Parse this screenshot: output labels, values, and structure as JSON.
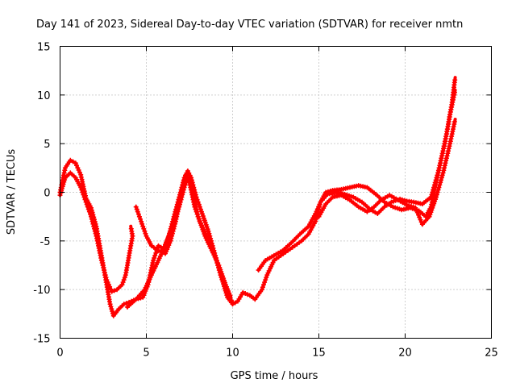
{
  "chart_data": {
    "type": "line",
    "title": "Day 141 of 2023, Sidereal Day-to-day VTEC variation (SDTVAR) for receiver nmtn",
    "xlabel": "GPS time / hours",
    "ylabel": "SDTVAR / TECUs",
    "xlim": [
      0,
      25
    ],
    "ylim": [
      -15,
      15
    ],
    "x_ticks": [
      0,
      5,
      10,
      15,
      20,
      25
    ],
    "y_ticks": [
      -15,
      -10,
      -5,
      0,
      5,
      10,
      15
    ],
    "x_tick_labels": [
      "0",
      "5",
      "10",
      "15",
      "20",
      "25"
    ],
    "y_tick_labels": [
      "-15",
      "-10",
      "-5",
      "0",
      "5",
      "10",
      "15"
    ],
    "grid": true,
    "marker": "plus",
    "series": [
      {
        "name": "track-1",
        "color": "#ff0000",
        "points": [
          [
            0.0,
            0.0
          ],
          [
            0.3,
            2.5
          ],
          [
            0.6,
            3.3
          ],
          [
            0.9,
            3.0
          ],
          [
            1.2,
            1.8
          ],
          [
            1.5,
            -0.6
          ],
          [
            1.8,
            -1.6
          ],
          [
            2.1,
            -3.5
          ],
          [
            2.4,
            -6.5
          ],
          [
            2.7,
            -9.5
          ],
          [
            2.9,
            -11.5
          ],
          [
            3.1,
            -12.7
          ],
          [
            3.4,
            -12.0
          ],
          [
            3.7,
            -11.5
          ],
          [
            4.0,
            -11.3
          ],
          [
            4.4,
            -11.0
          ],
          [
            4.8,
            -10.8
          ],
          [
            5.1,
            -9.5
          ],
          [
            5.4,
            -7.0
          ],
          [
            5.7,
            -5.5
          ],
          [
            6.0,
            -5.8
          ],
          [
            6.3,
            -4.5
          ],
          [
            6.6,
            -2.5
          ],
          [
            6.9,
            -0.5
          ],
          [
            7.2,
            1.5
          ],
          [
            7.4,
            2.2
          ],
          [
            7.6,
            1.5
          ],
          [
            7.9,
            -0.5
          ],
          [
            8.2,
            -2.0
          ],
          [
            8.6,
            -4.0
          ],
          [
            9.0,
            -6.5
          ],
          [
            9.4,
            -9.0
          ],
          [
            9.7,
            -10.8
          ],
          [
            10.0,
            -11.5
          ],
          [
            10.3,
            -11.2
          ],
          [
            10.6,
            -10.3
          ],
          [
            11.0,
            -10.6
          ],
          [
            11.3,
            -11.0
          ],
          [
            11.7,
            -10.0
          ],
          [
            12.0,
            -8.5
          ],
          [
            12.4,
            -7.0
          ],
          [
            12.8,
            -6.5
          ],
          [
            13.2,
            -6.0
          ],
          [
            13.6,
            -5.5
          ],
          [
            14.0,
            -5.0
          ],
          [
            14.4,
            -4.3
          ],
          [
            14.8,
            -3.0
          ],
          [
            15.1,
            -1.0
          ],
          [
            15.4,
            0.0
          ],
          [
            15.8,
            0.2
          ],
          [
            16.3,
            0.3
          ],
          [
            16.8,
            0.5
          ],
          [
            17.3,
            0.7
          ],
          [
            17.8,
            0.5
          ],
          [
            18.3,
            -0.2
          ],
          [
            18.8,
            -1.0
          ],
          [
            19.3,
            -1.5
          ],
          [
            19.8,
            -1.8
          ],
          [
            20.3,
            -1.6
          ],
          [
            20.8,
            -1.9
          ],
          [
            21.2,
            -2.5
          ],
          [
            21.5,
            -1.5
          ],
          [
            21.8,
            1.0
          ],
          [
            22.1,
            3.5
          ],
          [
            22.4,
            6.0
          ],
          [
            22.7,
            9.0
          ],
          [
            22.9,
            11.8
          ]
        ]
      },
      {
        "name": "track-2",
        "color": "#ff0000",
        "points": [
          [
            0.0,
            -0.3
          ],
          [
            0.3,
            1.5
          ],
          [
            0.6,
            2.0
          ],
          [
            0.9,
            1.5
          ],
          [
            1.2,
            0.5
          ],
          [
            1.5,
            -1.0
          ],
          [
            1.8,
            -2.5
          ],
          [
            2.1,
            -4.5
          ],
          [
            2.4,
            -7.0
          ],
          [
            2.7,
            -9.0
          ],
          [
            3.0,
            -10.2
          ],
          [
            3.3,
            -10.0
          ],
          [
            3.6,
            -9.5
          ],
          [
            3.8,
            -8.5
          ],
          [
            4.0,
            -6.5
          ],
          [
            4.2,
            -4.5
          ],
          [
            4.1,
            -3.5
          ]
        ]
      },
      {
        "name": "track-3",
        "color": "#ff0000",
        "points": [
          [
            4.4,
            -1.5
          ],
          [
            4.7,
            -3.0
          ],
          [
            5.0,
            -4.5
          ],
          [
            5.3,
            -5.5
          ],
          [
            5.7,
            -6.0
          ],
          [
            6.1,
            -6.3
          ],
          [
            6.4,
            -5.0
          ],
          [
            6.7,
            -3.0
          ],
          [
            7.0,
            -0.5
          ],
          [
            7.3,
            1.8
          ],
          [
            7.5,
            1.0
          ],
          [
            7.8,
            -1.5
          ],
          [
            8.1,
            -3.0
          ],
          [
            8.5,
            -4.5
          ],
          [
            8.9,
            -6.0
          ],
          [
            9.3,
            -8.5
          ],
          [
            9.7,
            -10.5
          ],
          [
            10.0,
            -11.3
          ]
        ]
      },
      {
        "name": "track-4",
        "color": "#ff0000",
        "points": [
          [
            3.9,
            -11.8
          ],
          [
            4.4,
            -11.0
          ],
          [
            4.9,
            -10.0
          ],
          [
            5.3,
            -8.5
          ],
          [
            5.7,
            -7.0
          ],
          [
            6.1,
            -5.5
          ],
          [
            6.5,
            -3.5
          ],
          [
            6.9,
            -1.5
          ],
          [
            7.2,
            0.5
          ],
          [
            7.4,
            1.5
          ],
          [
            7.7,
            0.0
          ],
          [
            8.0,
            -2.5
          ],
          [
            8.4,
            -4.5
          ],
          [
            8.8,
            -6.0
          ],
          [
            9.2,
            -7.5
          ],
          [
            9.6,
            -9.5
          ],
          [
            9.9,
            -10.8
          ]
        ]
      },
      {
        "name": "track-5",
        "color": "#ff0000",
        "points": [
          [
            11.5,
            -8.0
          ],
          [
            11.9,
            -7.0
          ],
          [
            12.4,
            -6.5
          ],
          [
            12.9,
            -6.0
          ],
          [
            13.4,
            -5.2
          ],
          [
            13.9,
            -4.3
          ],
          [
            14.4,
            -3.5
          ],
          [
            14.8,
            -2.2
          ],
          [
            15.1,
            -1.0
          ],
          [
            15.5,
            -0.2
          ],
          [
            16.0,
            0.0
          ],
          [
            16.5,
            -0.2
          ],
          [
            17.0,
            -0.5
          ],
          [
            17.5,
            -1.0
          ],
          [
            18.0,
            -1.8
          ],
          [
            18.4,
            -2.2
          ],
          [
            18.8,
            -1.5
          ],
          [
            19.2,
            -1.0
          ],
          [
            19.7,
            -0.7
          ],
          [
            20.1,
            -0.9
          ],
          [
            20.5,
            -1.0
          ],
          [
            21.0,
            -1.2
          ],
          [
            21.5,
            -0.5
          ],
          [
            21.9,
            2.0
          ],
          [
            22.3,
            5.0
          ],
          [
            22.6,
            8.0
          ],
          [
            22.9,
            10.5
          ]
        ]
      },
      {
        "name": "track-6",
        "color": "#ff0000",
        "points": [
          [
            15.0,
            -2.5
          ],
          [
            15.4,
            -1.2
          ],
          [
            15.8,
            -0.5
          ],
          [
            16.3,
            -0.3
          ],
          [
            16.8,
            -0.8
          ],
          [
            17.3,
            -1.5
          ],
          [
            17.8,
            -2.0
          ],
          [
            18.2,
            -1.5
          ],
          [
            18.6,
            -0.8
          ],
          [
            19.1,
            -0.3
          ],
          [
            19.6,
            -0.8
          ],
          [
            20.1,
            -1.3
          ],
          [
            20.6,
            -1.6
          ],
          [
            21.0,
            -3.3
          ],
          [
            21.4,
            -2.5
          ],
          [
            21.8,
            -0.5
          ],
          [
            22.2,
            2.0
          ],
          [
            22.6,
            5.0
          ],
          [
            22.9,
            7.5
          ]
        ]
      }
    ]
  }
}
